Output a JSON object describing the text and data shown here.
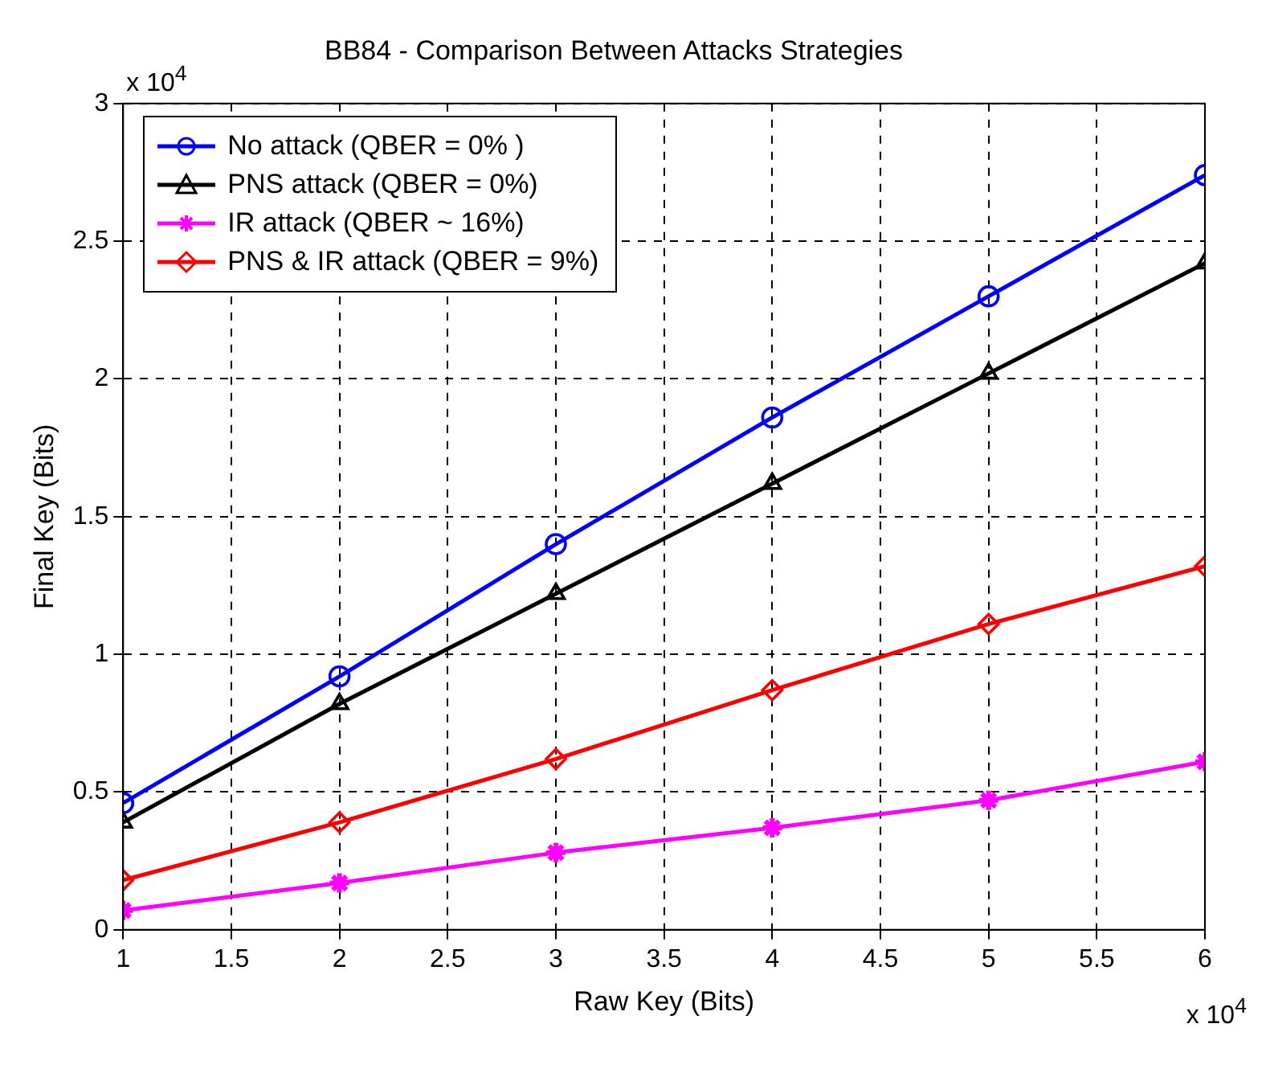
{
  "chart_data": {
    "type": "line",
    "title": "BB84 - Comparison Between Attacks Strategies",
    "xlabel": "Raw Key (Bits)",
    "ylabel": "Final Key (Bits)",
    "x": [
      1,
      2,
      3,
      4,
      5,
      6
    ],
    "series": [
      {
        "name": "No attack (QBER = 0% )",
        "color": "#0000ff",
        "marker": "circle",
        "values": [
          0.46,
          0.92,
          1.4,
          1.86,
          2.3,
          2.74
        ]
      },
      {
        "name": "PNS attack (QBER = 0%)",
        "color": "#000000",
        "marker": "triangle",
        "values": [
          0.39,
          0.82,
          1.22,
          1.62,
          2.02,
          2.42
        ]
      },
      {
        "name": "IR attack (QBER ~ 16%)",
        "color": "#ff00ff",
        "marker": "cross",
        "values": [
          0.07,
          0.17,
          0.28,
          0.37,
          0.47,
          0.61
        ]
      },
      {
        "name": "PNS & IR attack (QBER = 9%)",
        "color": "#ff0000",
        "marker": "diamond",
        "values": [
          0.18,
          0.39,
          0.62,
          0.87,
          1.11,
          1.32
        ]
      }
    ],
    "xlim": [
      1,
      6
    ],
    "xticks": [
      1,
      1.5,
      2,
      2.5,
      3,
      3.5,
      4,
      4.5,
      5,
      5.5,
      6
    ],
    "ylim": [
      0,
      3
    ],
    "yticks": [
      0,
      0.5,
      1,
      1.5,
      2,
      2.5,
      3
    ],
    "grid": true,
    "legend": "top left",
    "line_style": "solid",
    "annotations": [
      "x 10$^{4}$",
      "x 10$^{4}$"
    ]
  }
}
